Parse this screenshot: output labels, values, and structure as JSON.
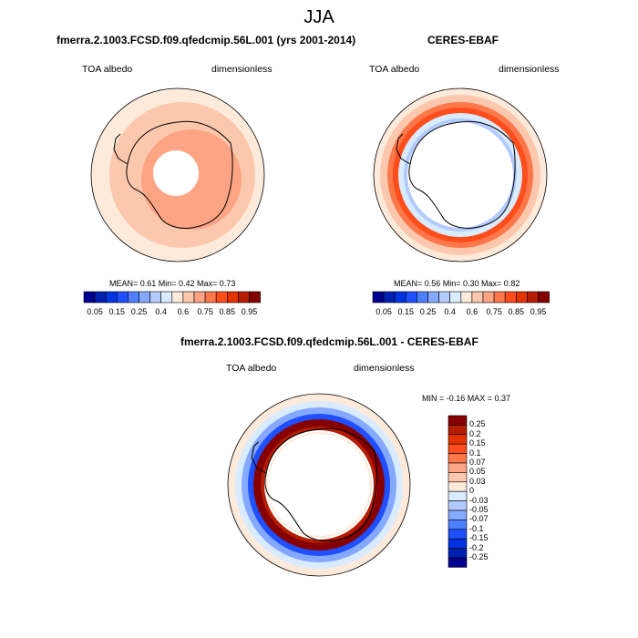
{
  "title": "JJA",
  "palette": [
    "#00008f",
    "#0021b0",
    "#0033e0",
    "#1f4fff",
    "#4d7fff",
    "#85a9ff",
    "#b3caff",
    "#d9ebff",
    "#feeadb",
    "#fcc8ad",
    "#fca484",
    "#fc774a",
    "#ff4d1c",
    "#e33300",
    "#b51c00",
    "#850000"
  ],
  "panels": [
    {
      "title": "fmerra.2.1003.FCSD.f09.qfedcmip.56L.001 (yrs 2001-2014)",
      "left_label": "TOA albedo",
      "right_label": "dimensionless",
      "stats": "MEAN=   0.61  Min=   0.42  Max=   0.73",
      "ticks": [
        "0.05",
        "0.15",
        "0.25",
        "0.4",
        "0.6",
        "0.75",
        "0.85",
        "0.95"
      ]
    },
    {
      "title": "CERES-EBAF",
      "left_label": "TOA albedo",
      "right_label": "dimensionless",
      "stats": "MEAN=   0.56  Min=   0.30  Max=   0.82",
      "ticks": [
        "0.05",
        "0.15",
        "0.25",
        "0.4",
        "0.6",
        "0.75",
        "0.85",
        "0.95"
      ]
    },
    {
      "title": "fmerra.2.1003.FCSD.f09.qfedcmip.56L.001 - CERES-EBAF",
      "left_label": "TOA albedo",
      "right_label": "dimensionless",
      "stats": "MIN =  -0.16 MAX =  0.37",
      "ticks": [
        "0.25",
        "0.2",
        "0.15",
        "0.1",
        "0.07",
        "0.05",
        "0.03",
        "0",
        "-0.03",
        "-0.05",
        "-0.07",
        "-0.1",
        "-0.15",
        "-0.2",
        "-0.25"
      ]
    }
  ]
}
